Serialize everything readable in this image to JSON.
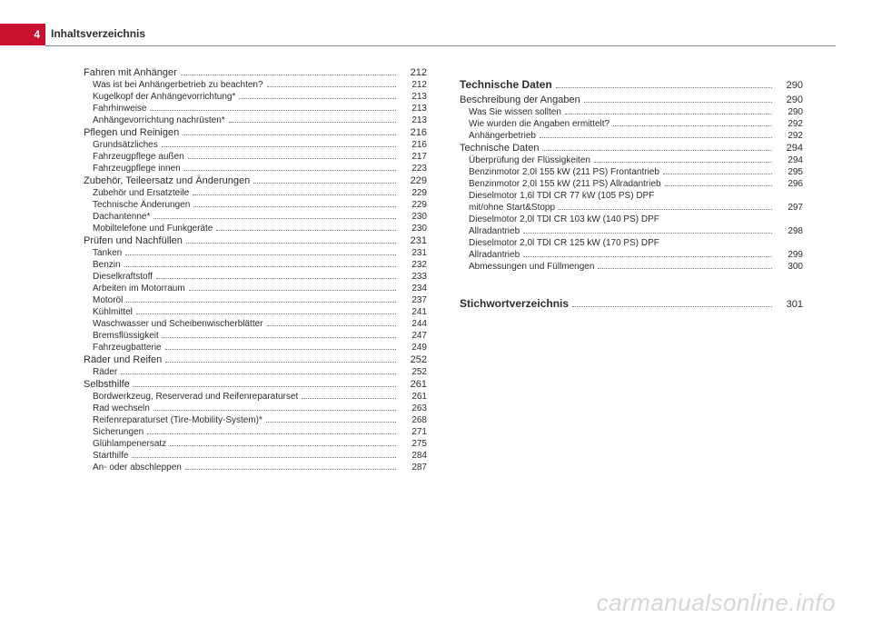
{
  "header": {
    "page_number": "4",
    "title": "Inhaltsverzeichnis",
    "tab_bg": "#c8102e",
    "tab_fg": "#ffffff"
  },
  "watermark": "carmanualsonline.info",
  "left_column": [
    {
      "type": "sub",
      "label": "Fahren mit Anhänger",
      "page": "212"
    },
    {
      "type": "item",
      "label": "Was ist bei Anhängerbetrieb zu beachten?",
      "page": "212"
    },
    {
      "type": "item",
      "label": "Kugelkopf der Anhängevorrichtung*",
      "page": "213"
    },
    {
      "type": "item",
      "label": "Fahrhinweise",
      "page": "213"
    },
    {
      "type": "item",
      "label": "Anhängevorrichtung nachrüsten*",
      "page": "213"
    },
    {
      "type": "sub",
      "label": "Pflegen und Reinigen",
      "page": "216"
    },
    {
      "type": "item",
      "label": "Grundsätzliches",
      "page": "216"
    },
    {
      "type": "item",
      "label": "Fahrzeugpflege außen",
      "page": "217"
    },
    {
      "type": "item",
      "label": "Fahrzeugpflege innen",
      "page": "223"
    },
    {
      "type": "sub",
      "label": "Zubehör, Teileersatz und Änderungen",
      "page": "229"
    },
    {
      "type": "item",
      "label": "Zubehör und Ersatzteile",
      "page": "229"
    },
    {
      "type": "item",
      "label": "Technische Änderungen",
      "page": "229"
    },
    {
      "type": "item",
      "label": "Dachantenne*",
      "page": "230"
    },
    {
      "type": "item",
      "label": "Mobiltelefone und Funkgeräte",
      "page": "230"
    },
    {
      "type": "sub",
      "label": "Prüfen und Nachfüllen",
      "page": "231"
    },
    {
      "type": "item",
      "label": "Tanken",
      "page": "231"
    },
    {
      "type": "item",
      "label": "Benzin",
      "page": "232"
    },
    {
      "type": "item",
      "label": "Dieselkraftstoff",
      "page": "233"
    },
    {
      "type": "item",
      "label": "Arbeiten im Motorraum",
      "page": "234"
    },
    {
      "type": "item",
      "label": "Motoröl",
      "page": "237"
    },
    {
      "type": "item",
      "label": "Kühlmittel",
      "page": "241"
    },
    {
      "type": "item",
      "label": "Waschwasser und Scheibenwischerblätter",
      "page": "244"
    },
    {
      "type": "item",
      "label": "Bremsflüssigkeit",
      "page": "247"
    },
    {
      "type": "item",
      "label": "Fahrzeugbatterie",
      "page": "249"
    },
    {
      "type": "sub",
      "label": "Räder und Reifen",
      "page": "252"
    },
    {
      "type": "item",
      "label": "Räder",
      "page": "252"
    },
    {
      "type": "sub",
      "label": "Selbsthilfe",
      "page": "261"
    },
    {
      "type": "item",
      "label": "Bordwerkzeug, Reserverad und Reifenreparaturset",
      "page": "261",
      "wrap": true
    },
    {
      "type": "item",
      "label": "Rad wechseln",
      "page": "263"
    },
    {
      "type": "item",
      "label": "Reifenreparaturset (Tire-Mobility-System)*",
      "page": "268"
    },
    {
      "type": "item",
      "label": "Sicherungen",
      "page": "271"
    },
    {
      "type": "item",
      "label": "Glühlampenersatz",
      "page": "275"
    },
    {
      "type": "item",
      "label": "Starthilfe",
      "page": "284"
    },
    {
      "type": "item",
      "label": "An- oder abschleppen",
      "page": "287"
    }
  ],
  "right_column": [
    {
      "type": "section",
      "label": "Technische Daten",
      "page": "290"
    },
    {
      "type": "sub",
      "label": "Beschreibung der Angaben",
      "page": "290"
    },
    {
      "type": "item",
      "label": "Was Sie wissen sollten",
      "page": "290"
    },
    {
      "type": "item",
      "label": "Wie wurden die Angaben ermittelt?",
      "page": "292"
    },
    {
      "type": "item",
      "label": "Anhängerbetrieb",
      "page": "292"
    },
    {
      "type": "sub",
      "label": "Technische Daten",
      "page": "294"
    },
    {
      "type": "item",
      "label": "Überprüfung der Flüssigkeiten",
      "page": "294"
    },
    {
      "type": "item",
      "label": "Benzinmotor 2,0l 155 kW (211 PS) Frontantrieb",
      "page": "295"
    },
    {
      "type": "item",
      "label": "Benzinmotor 2,0l 155 kW (211 PS) Allradantrieb",
      "page": "296"
    },
    {
      "type": "item",
      "label": "Dieselmotor 1,6l TDI CR 77 kW (105 PS) DPF mit/ohne Start&Stopp",
      "page": "297",
      "wrap": true
    },
    {
      "type": "item",
      "label": "Dieselmotor 2,0l TDI CR 103 kW (140 PS) DPF Allradantrieb",
      "page": "298",
      "wrap": true
    },
    {
      "type": "item",
      "label": "Dieselmotor 2,0l TDI CR 125 kW (170 PS) DPF Allradantrieb",
      "page": "299",
      "wrap": true
    },
    {
      "type": "item",
      "label": "Abmessungen und Füllmengen",
      "page": "300"
    },
    {
      "type": "section",
      "label": "Stichwortverzeichnis",
      "page": "301",
      "spaced": true
    }
  ]
}
